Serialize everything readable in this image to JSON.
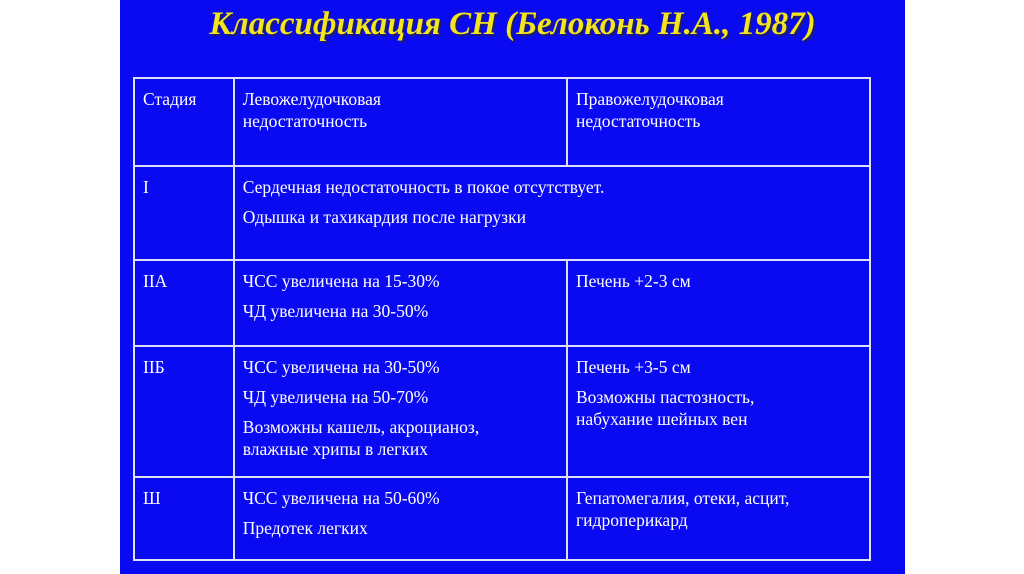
{
  "title": "Классификация СН (Белоконь Н.А., 1987)",
  "table": {
    "headers": [
      "Стадия",
      "Левожелудочковая недостаточность",
      "Правожелудочковая недостаточность"
    ],
    "rows": [
      {
        "stage": "I",
        "combined": [
          "Сердечная недостаточность в покое отсутствует.",
          "Одышка и тахикардия после нагрузки"
        ]
      },
      {
        "stage": "IIA",
        "left": [
          "ЧСС увеличена на 15-30%",
          "ЧД увеличена на 30-50%"
        ],
        "right": [
          "Печень +2-3 см"
        ]
      },
      {
        "stage": "IIБ",
        "left": [
          "ЧСС увеличена на 30-50%",
          "ЧД увеличена на 50-70%",
          "Возможны кашель, акроцианоз, влажные хрипы в легких"
        ],
        "right": [
          "Печень +3-5 см",
          "Возможны пастозность, набухание шейных вен"
        ]
      },
      {
        "stage": "Ш",
        "left": [
          "ЧСС увеличена на 50-60%",
          "Предотек легких"
        ],
        "right": [
          "Гепатомегалия, отеки, асцит, гидроперикард"
        ]
      }
    ]
  }
}
